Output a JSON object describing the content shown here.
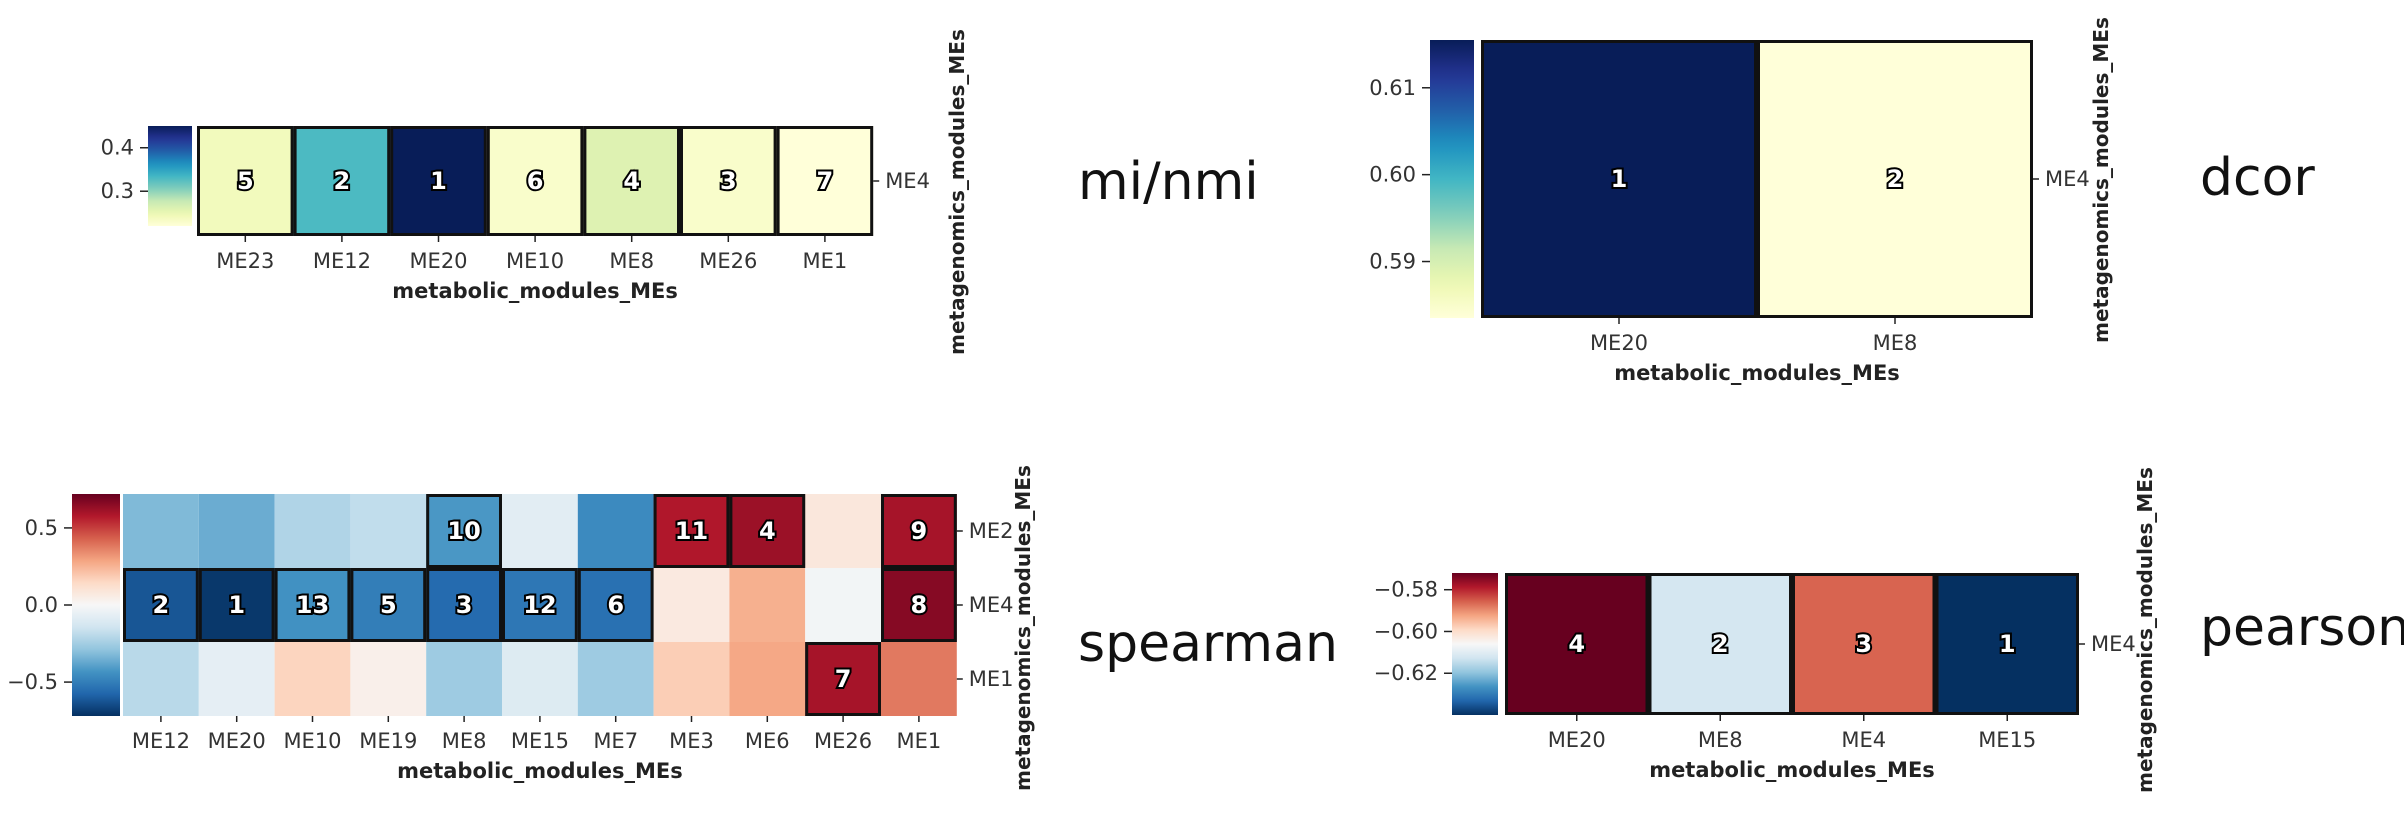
{
  "chart_data": [
    {
      "type": "heatmap",
      "title": "mi/nmi",
      "colormap": "YlGnBu",
      "columns": [
        "ME23",
        "ME12",
        "ME20",
        "ME10",
        "ME8",
        "ME26",
        "ME1"
      ],
      "rows": [
        "ME4"
      ],
      "values": [
        [
          0.24,
          0.33,
          0.45,
          0.23,
          0.26,
          0.23,
          0.22
        ]
      ],
      "ranks": [
        [
          5,
          2,
          1,
          6,
          4,
          3,
          7
        ]
      ],
      "highlight": [
        [
          true,
          true,
          true,
          true,
          true,
          true,
          true
        ]
      ],
      "vmin": 0.22,
      "vmax": 0.45,
      "colorbar_ticks": [
        "0.4",
        "0.3"
      ],
      "colorbar_tick_values": [
        0.4,
        0.3
      ],
      "xlabel": "metabolic_modules_MEs",
      "ylabel": "metagenomics_modules_MEs"
    },
    {
      "type": "heatmap",
      "title": "dcor",
      "colormap": "YlGnBu",
      "columns": [
        "ME20",
        "ME8"
      ],
      "rows": [
        "ME4"
      ],
      "values": [
        [
          0.6155,
          0.5835
        ]
      ],
      "ranks": [
        [
          1,
          2
        ]
      ],
      "highlight": [
        [
          true,
          true
        ]
      ],
      "vmin": 0.5835,
      "vmax": 0.6155,
      "colorbar_ticks": [
        "0.61",
        "0.60",
        "0.59"
      ],
      "colorbar_tick_values": [
        0.61,
        0.6,
        0.59
      ],
      "xlabel": "metabolic_modules_MEs",
      "ylabel": "metagenomics_modules_MEs"
    },
    {
      "type": "heatmap",
      "title": "spearman",
      "colormap": "RdBu_r",
      "columns": [
        "ME12",
        "ME20",
        "ME10",
        "ME19",
        "ME8",
        "ME15",
        "ME7",
        "ME3",
        "ME6",
        "ME26",
        "ME1"
      ],
      "rows": [
        "ME2",
        "ME4",
        "ME1"
      ],
      "values": [
        [
          -0.32,
          -0.36,
          -0.22,
          -0.18,
          -0.42,
          -0.08,
          -0.46,
          0.58,
          0.62,
          0.08,
          0.6
        ],
        [
          -0.62,
          -0.7,
          -0.44,
          -0.5,
          -0.56,
          -0.52,
          -0.54,
          0.07,
          0.26,
          -0.02,
          0.66
        ],
        [
          -0.2,
          -0.07,
          0.16,
          0.04,
          -0.26,
          -0.1,
          -0.26,
          0.18,
          0.28,
          0.6,
          0.38
        ]
      ],
      "ranks": [
        [
          null,
          null,
          null,
          null,
          10,
          null,
          null,
          11,
          4,
          null,
          9
        ],
        [
          2,
          1,
          13,
          5,
          3,
          12,
          6,
          null,
          null,
          null,
          8
        ],
        [
          null,
          null,
          null,
          null,
          null,
          null,
          null,
          null,
          null,
          7,
          null
        ]
      ],
      "highlight": [
        [
          false,
          false,
          false,
          false,
          true,
          false,
          false,
          true,
          true,
          false,
          true
        ],
        [
          true,
          true,
          true,
          true,
          true,
          true,
          true,
          false,
          false,
          false,
          true
        ],
        [
          false,
          false,
          false,
          false,
          false,
          false,
          false,
          false,
          false,
          true,
          false
        ]
      ],
      "vmin": -0.72,
      "vmax": 0.72,
      "colorbar_ticks": [
        "0.5",
        "0.0",
        "−0.5"
      ],
      "colorbar_tick_values": [
        0.5,
        0.0,
        -0.5
      ],
      "xlabel": "metabolic_modules_MEs",
      "ylabel": "metagenomics_modules_MEs"
    },
    {
      "type": "heatmap",
      "title": "pearson",
      "colormap": "RdBu_r",
      "columns": [
        "ME20",
        "ME8",
        "ME4",
        "ME15"
      ],
      "rows": [
        "ME4"
      ],
      "values": [
        [
          -0.572,
          -0.612,
          -0.586,
          -0.64
        ]
      ],
      "ranks": [
        [
          4,
          2,
          3,
          1
        ]
      ],
      "highlight": [
        [
          true,
          true,
          true,
          true
        ]
      ],
      "vmin": -0.64,
      "vmax": -0.572,
      "colorbar_ticks": [
        "−0.58",
        "−0.60",
        "−0.62"
      ],
      "colorbar_tick_values": [
        -0.58,
        -0.6,
        -0.62
      ],
      "xlabel": "metabolic_modules_MEs",
      "ylabel": "metagenomics_modules_MEs"
    }
  ]
}
